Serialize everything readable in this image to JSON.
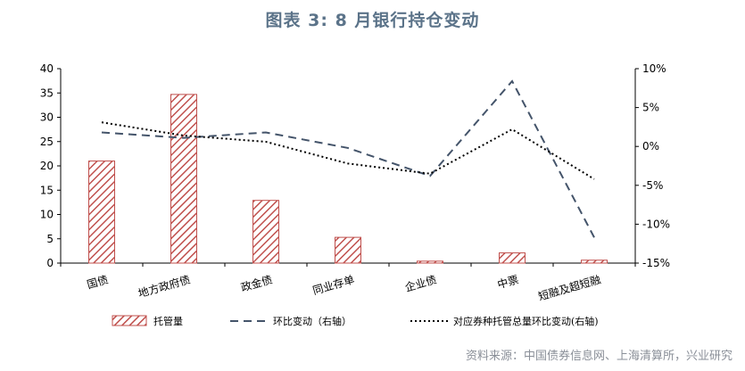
{
  "title": "图表 3:  8 月银行持仓变动",
  "source": "资料来源：中国债券信息网、上海清算所，兴业研究",
  "chart_data": {
    "type": "bar",
    "categories": [
      "国债",
      "地方政府债",
      "政金债",
      "同业存单",
      "企业债",
      "中票",
      "短融及超短融"
    ],
    "y_left": {
      "ylim": [
        0,
        40
      ],
      "ticks": [
        "0",
        "5",
        "10",
        "15",
        "20",
        "25",
        "30",
        "35",
        "40"
      ]
    },
    "y_right": {
      "ylim": [
        -15,
        10
      ],
      "ticks": [
        "-15%",
        "-10%",
        "-5%",
        "0%",
        "5%",
        "10%"
      ]
    },
    "series": [
      {
        "name": "托管量",
        "type": "bar",
        "axis": "left",
        "values": [
          21.0,
          34.7,
          12.9,
          5.3,
          0.4,
          2.1,
          0.6
        ],
        "color": "#c0504d"
      },
      {
        "name": "环比变动（右轴）",
        "type": "line",
        "axis": "right",
        "style": "dashed",
        "values": [
          1.8,
          1.1,
          1.8,
          -0.2,
          -3.8,
          8.4,
          -11.7
        ],
        "color": "#44546a"
      },
      {
        "name": "对应券种托管总量环比变动(右轴)",
        "type": "line",
        "axis": "right",
        "style": "dotted",
        "values": [
          3.1,
          1.4,
          0.6,
          -2.2,
          -3.5,
          2.2,
          -4.2
        ],
        "color": "#000000"
      }
    ],
    "grid": false,
    "legend_position": "bottom"
  }
}
